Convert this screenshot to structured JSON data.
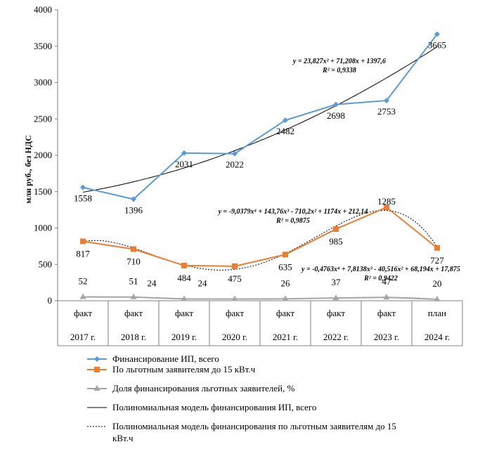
{
  "chart_data": {
    "type": "line",
    "ylabel": "млн руб., без НДС",
    "ylim": [
      0,
      4000
    ],
    "yticks": [
      0,
      500,
      1000,
      1500,
      2000,
      2500,
      3000,
      3500,
      4000
    ],
    "categories": [
      {
        "top": "факт",
        "bottom": "2017 г."
      },
      {
        "top": "факт",
        "bottom": "2018 г."
      },
      {
        "top": "факт",
        "bottom": "2019 г."
      },
      {
        "top": "факт",
        "bottom": "2020 г."
      },
      {
        "top": "факт",
        "bottom": "2021 г."
      },
      {
        "top": "факт",
        "bottom": "2022 г."
      },
      {
        "top": "факт",
        "bottom": "2023 г."
      },
      {
        "top": "план",
        "bottom": "2024 г."
      }
    ],
    "series": [
      {
        "name": "Финансирование ИП, всего",
        "color": "#5b9bd5",
        "marker": "diamond",
        "values": [
          1558,
          1396,
          2031,
          2022,
          2482,
          2698,
          2753,
          3665
        ]
      },
      {
        "name": "По льготным заявителям до 15 кВт.ч",
        "color": "#ed7d31",
        "marker": "square",
        "values": [
          817,
          710,
          484,
          475,
          635,
          985,
          1285,
          727
        ]
      },
      {
        "name": "Доля финансирования льготных заявителей, %",
        "color": "#a5a5a5",
        "marker": "triangle",
        "values": [
          52,
          51,
          24,
          24,
          26,
          37,
          47,
          20
        ]
      }
    ],
    "trendlines": [
      {
        "name": "Полиномиальная модель финансирования ИП, всего",
        "style": "solid",
        "color": "#000000",
        "equation": "y = 23,827x² + 71,208x + 1397,6",
        "r2": "R² = 0,9338",
        "coeffs": [
          1397.6,
          71.208,
          23.827
        ]
      },
      {
        "name": "Полиномиальная модель финансирования по льготным заявителям до 15 кВт.ч",
        "style": "dotted",
        "color": "#000000",
        "equation": "y = -9,0379x⁴ + 143,76x³ - 710,2x² + 1174x + 212,14",
        "r2": "R² = 0,9875",
        "coeffs": [
          212.14,
          1174,
          -710.2,
          143.76,
          -9.0379
        ]
      },
      {
        "name": "",
        "style": "dotted",
        "color": "#000000",
        "equation": "y = -0,4763x⁴ + 7,8138x³ - 40,516x² + 68,194x + 17,875",
        "r2": "R² = 0,9422",
        "coeffs": [
          17.875,
          68.194,
          -40.516,
          7.8138,
          -0.4763
        ]
      }
    ],
    "legend_position": "bottom",
    "grid": false
  }
}
